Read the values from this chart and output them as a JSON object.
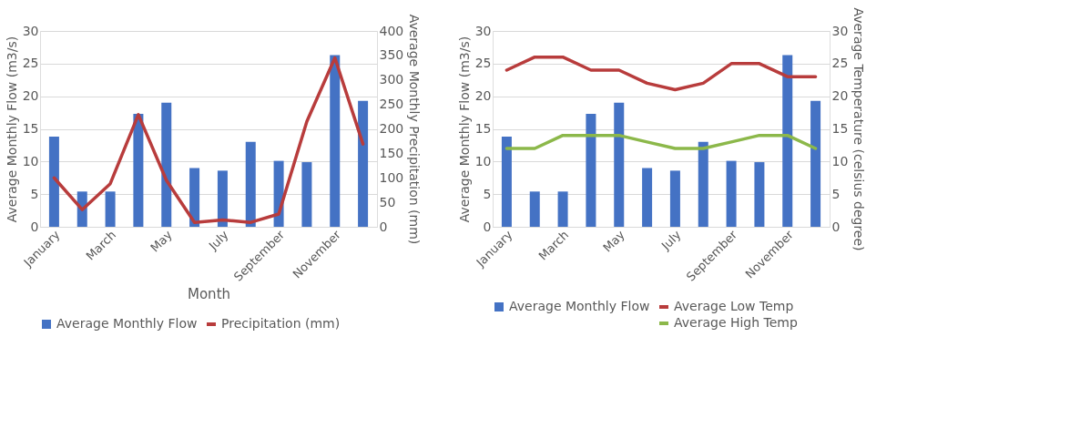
{
  "chart_data": [
    {
      "type": "bar",
      "categories": [
        "January",
        null,
        "March",
        null,
        "May",
        null,
        "July",
        null,
        "September",
        null,
        "November",
        null
      ],
      "xlabel": "Month",
      "ylabel": "Average Monthly Flow (m3/s)",
      "y2label": "Average Monthly Precipitation (mm)",
      "ylim": [
        0,
        30
      ],
      "yticks": [
        0,
        5,
        10,
        15,
        20,
        25,
        30
      ],
      "y2lim": [
        0,
        400
      ],
      "y2ticks": [
        0,
        50,
        100,
        150,
        200,
        250,
        300,
        350,
        400
      ],
      "grid": "y",
      "legend": "bottom",
      "series": [
        {
          "name": "Average Monthly Flow",
          "color": "#4472c4",
          "values": [
            13.8,
            5.4,
            5.4,
            17.3,
            19.0,
            9.0,
            8.6,
            13.0,
            10.1,
            9.9,
            26.3,
            19.3
          ]
        },
        {
          "name": "Precipitation (mm)",
          "type": "line",
          "axis": "y2",
          "color": "#b83c3c",
          "values": [
            100,
            35,
            88,
            229,
            95,
            9,
            14,
            9,
            26,
            215,
            345,
            169
          ]
        }
      ]
    },
    {
      "type": "bar",
      "categories": [
        "January",
        null,
        "March",
        null,
        "May",
        null,
        "July",
        null,
        "September",
        null,
        "November",
        null
      ],
      "ylabel": "Average Monthly Flow (m3/s)",
      "y2label": "Average Temperature  (celsius degree)",
      "ylim": [
        0,
        30
      ],
      "yticks": [
        0,
        5,
        10,
        15,
        20,
        25,
        30
      ],
      "y2lim": [
        0,
        30
      ],
      "y2ticks": [
        0,
        5,
        10,
        15,
        20,
        25,
        30
      ],
      "grid": "y",
      "legend": "bottom",
      "series": [
        {
          "name": "Average Monthly Flow",
          "color": "#4472c4",
          "values": [
            13.8,
            5.4,
            5.4,
            17.3,
            19.0,
            9.0,
            8.6,
            13.0,
            10.1,
            9.9,
            26.3,
            19.3
          ]
        },
        {
          "name": "Average Low Temp",
          "type": "line",
          "axis": "y2",
          "color": "#b83c3c",
          "values": [
            24,
            26,
            26,
            24,
            24,
            22,
            21,
            22,
            25,
            25,
            23,
            23
          ]
        },
        {
          "name": "Average High Temp",
          "type": "line",
          "axis": "y2",
          "color": "#8cb84a",
          "values": [
            12,
            12,
            14,
            14,
            14,
            13,
            12,
            12,
            13,
            14,
            14,
            12
          ]
        }
      ]
    }
  ]
}
